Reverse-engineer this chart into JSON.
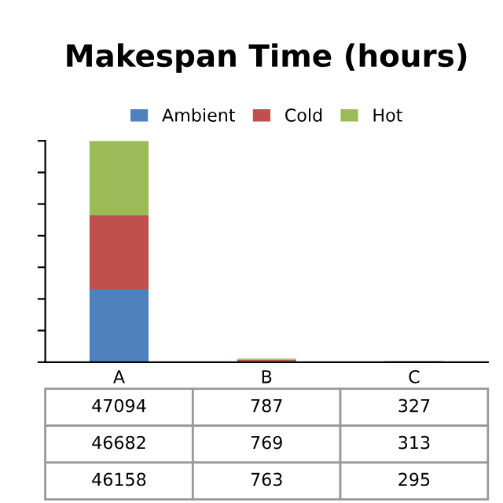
{
  "chart_data": {
    "type": "bar",
    "title": "Makespan Time (hours)",
    "stacked": true,
    "categories": [
      "A",
      "B",
      "C"
    ],
    "series": [
      {
        "name": "Ambient",
        "color": "#4f81bd",
        "values": [
          46158,
          763,
          295
        ]
      },
      {
        "name": "Cold",
        "color": "#c0504d",
        "values": [
          46682,
          769,
          313
        ]
      },
      {
        "name": "Hot",
        "color": "#9bbb59",
        "values": [
          47094,
          787,
          327
        ]
      }
    ],
    "ylim": [
      0,
      140000
    ],
    "yticks": [
      {
        "value": 0,
        "label": null
      },
      {
        "value": 20000,
        "label": null
      },
      {
        "value": 40000,
        "label": null
      },
      {
        "value": 60000,
        "label": null
      },
      {
        "value": 80000,
        "label": null
      },
      {
        "value": 100000,
        "label": null
      },
      {
        "value": 120000,
        "label": null
      },
      {
        "value": 140000,
        "label": null
      }
    ],
    "tick_labels": "x",
    "data_labels": true,
    "legend": "top",
    "grid": false
  }
}
